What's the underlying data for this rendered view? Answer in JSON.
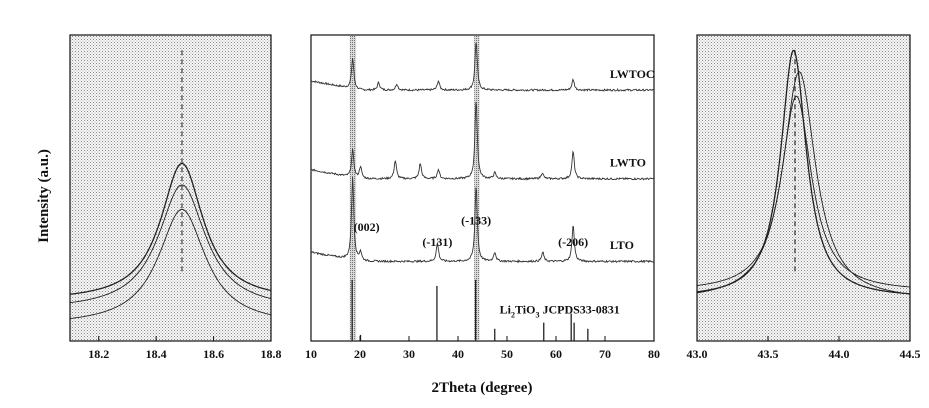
{
  "figure": {
    "ylabel": "Intensity (a.u.)",
    "xlabel": "2Theta (degree)"
  },
  "chart_data": [
    {
      "type": "line",
      "id": "left-zoom",
      "xlim": [
        18.1,
        18.8
      ],
      "ylim": [
        0,
        1
      ],
      "x_ticks": [
        "18.2",
        "18.4",
        "18.6",
        "18.8"
      ],
      "x_tick_values": [
        18.2,
        18.4,
        18.6,
        18.8
      ],
      "reference_line_x": 18.49,
      "series": [
        {
          "peak_x": 18.49,
          "peak_y": 0.58,
          "base_y": 0.13,
          "width": 0.09
        },
        {
          "peak_x": 18.49,
          "peak_y": 0.51,
          "base_y": 0.1,
          "width": 0.1
        },
        {
          "peak_x": 18.49,
          "peak_y": 0.43,
          "base_y": 0.05,
          "width": 0.1
        }
      ]
    },
    {
      "type": "line",
      "id": "full-pattern",
      "xlim": [
        10,
        80
      ],
      "ylim": [
        0,
        1
      ],
      "x_ticks": [
        "10",
        "20",
        "30",
        "40",
        "50",
        "60",
        "70",
        "80"
      ],
      "x_tick_values": [
        10,
        20,
        30,
        40,
        50,
        60,
        70,
        80
      ],
      "highlight_bands": [
        [
          17.9,
          19.2
        ],
        [
          43.3,
          44.4
        ]
      ],
      "series": [
        {
          "name": "LWTOC",
          "offset": 0.82,
          "peaks": [
            [
              18.5,
              0.1
            ],
            [
              23.8,
              0.025
            ],
            [
              27.5,
              0.02
            ],
            [
              36.0,
              0.03
            ],
            [
              43.7,
              0.16
            ],
            [
              63.5,
              0.035
            ]
          ]
        },
        {
          "name": "LWTO",
          "offset": 0.53,
          "peaks": [
            [
              18.5,
              0.09
            ],
            [
              20.1,
              0.04
            ],
            [
              27.2,
              0.06
            ],
            [
              32.3,
              0.05
            ],
            [
              36.0,
              0.03
            ],
            [
              43.7,
              0.26
            ],
            [
              47.5,
              0.02
            ],
            [
              57.2,
              0.02
            ],
            [
              63.5,
              0.09
            ]
          ]
        },
        {
          "name": "LTO",
          "offset": 0.26,
          "peaks": [
            [
              18.5,
              0.27
            ],
            [
              20.1,
              0.03
            ],
            [
              35.8,
              0.06
            ],
            [
              43.7,
              0.25
            ],
            [
              47.5,
              0.03
            ],
            [
              57.3,
              0.03
            ],
            [
              63.5,
              0.12
            ]
          ]
        }
      ],
      "peak_labels": [
        {
          "label": "(002)",
          "x": 18.5
        },
        {
          "label": "(-131)",
          "x": 35.8
        },
        {
          "label": "(-133)",
          "x": 43.7
        },
        {
          "label": "(-206)",
          "x": 63.5
        }
      ],
      "reference": {
        "label_main": "Li",
        "label_sub1": "2",
        "label_mid": "TiO",
        "label_sub2": "3",
        "label_rest": " JCPDS33-0831",
        "sticks": [
          [
            18.4,
            0.2
          ],
          [
            20.1,
            0.02
          ],
          [
            35.7,
            0.18
          ],
          [
            43.6,
            0.2
          ],
          [
            47.5,
            0.04
          ],
          [
            57.5,
            0.06
          ],
          [
            63.1,
            0.09
          ],
          [
            63.7,
            0.06
          ],
          [
            66.5,
            0.04
          ]
        ]
      }
    },
    {
      "type": "line",
      "id": "right-zoom",
      "xlim": [
        43.0,
        44.5
      ],
      "ylim": [
        0,
        1
      ],
      "x_ticks": [
        "43.0",
        "43.5",
        "44.0",
        "44.5"
      ],
      "x_tick_values": [
        43.0,
        43.5,
        44.0,
        44.5
      ],
      "reference_line_x": 43.69,
      "series": [
        {
          "peak_x": 43.68,
          "peak_y": 0.95,
          "base_y": 0.14,
          "width": 0.11
        },
        {
          "peak_x": 43.72,
          "peak_y": 0.88,
          "base_y": 0.13,
          "width": 0.14
        },
        {
          "peak_x": 43.7,
          "peak_y": 0.8,
          "base_y": 0.16,
          "width": 0.13
        }
      ]
    }
  ]
}
